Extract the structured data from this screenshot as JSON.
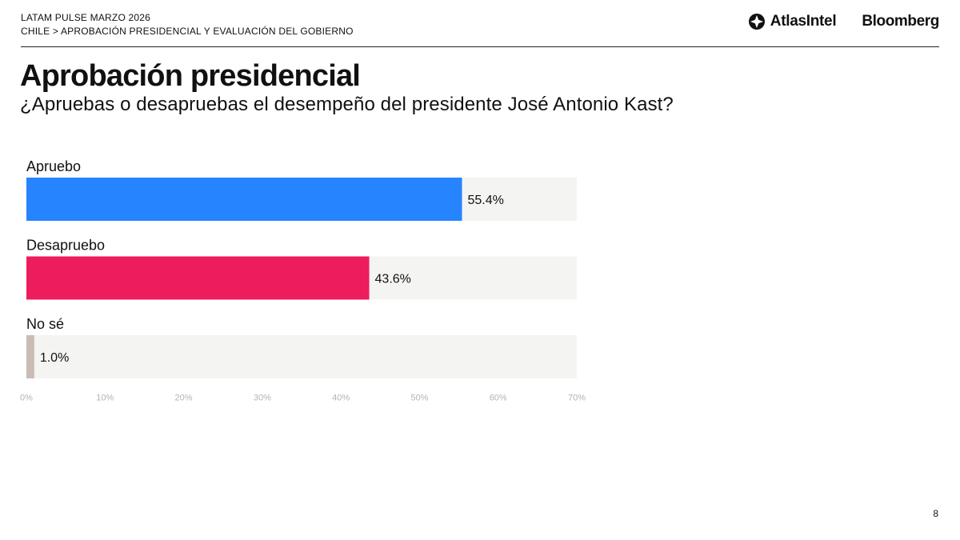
{
  "header": {
    "series": "LATAM PULSE MARZO 2026",
    "breadcrumb": "CHILE > APROBACIÓN PRESIDENCIAL Y EVALUACIÓN DEL GOBIERNO",
    "logo_atlas": "AtlasIntel",
    "logo_bloomberg": "Bloomberg"
  },
  "page_number": "8",
  "colors": {
    "track": "#f4f4f2",
    "apruebo": "#2684ff",
    "desapruebo": "#ed1c5c",
    "no_se": "#c8bcb4",
    "axis_text": "#b3b3b3"
  },
  "chart_data": {
    "type": "bar",
    "orientation": "horizontal",
    "title": "Aprobación presidencial",
    "subtitle": "¿Apruebas o desapruebas el desempeño del presidente José Antonio Kast?",
    "categories": [
      "Apruebo",
      "Desapruebo",
      "No sé"
    ],
    "values": [
      55.4,
      43.6,
      1.0
    ],
    "value_labels": [
      "55.4%",
      "43.6%",
      "1.0%"
    ],
    "bar_colors": [
      "#2684ff",
      "#ed1c5c",
      "#c8bcb4"
    ],
    "xlim": [
      0,
      70
    ],
    "xticks": [
      0,
      10,
      20,
      30,
      40,
      50,
      60,
      70
    ],
    "xtick_labels": [
      "0%",
      "10%",
      "20%",
      "30%",
      "40%",
      "50%",
      "60%",
      "70%"
    ],
    "xlabel": "",
    "ylabel": "",
    "grid": false,
    "legend": "none"
  }
}
